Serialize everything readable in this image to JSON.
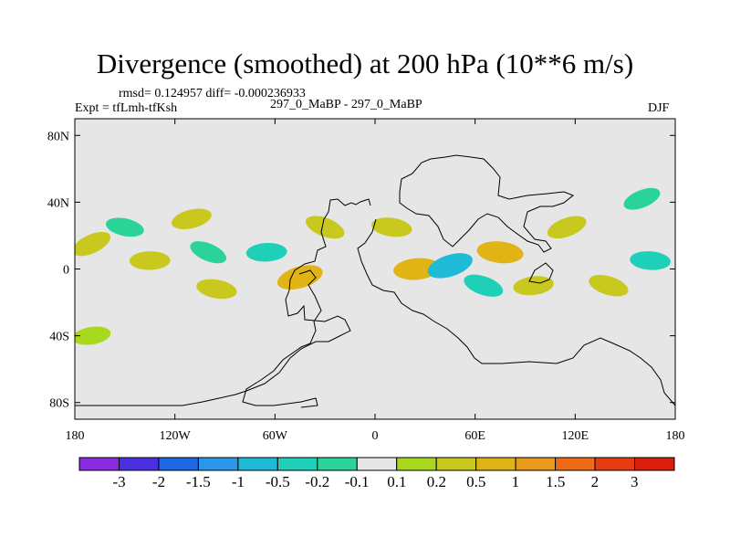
{
  "title": "Divergence (smoothed) at 200 hPa (10**6 m/s)",
  "stats_line": "rmsd= 0.124957 diff= -0.000236933",
  "left_label": "Expt = tfLmh-tfKsh",
  "center_label": "297_0_MaBP - 297_0_MaBP",
  "right_label": "DJF",
  "chart_data": {
    "type": "heatmap",
    "title": "Divergence (smoothed) at 200 hPa (10**6 m/s)",
    "variable": "divergence difference",
    "units": "10**6 m/s",
    "season": "DJF",
    "x_axis": {
      "range": [
        -180,
        180
      ],
      "ticks": [
        -180,
        -120,
        -60,
        0,
        60,
        120,
        180
      ],
      "tick_labels": [
        "180",
        "120W",
        "60W",
        "0",
        "60E",
        "120E",
        "180"
      ]
    },
    "y_axis": {
      "range": [
        -90,
        90
      ],
      "ticks": [
        80,
        40,
        0,
        -40,
        -80
      ],
      "tick_labels": [
        "80N",
        "40N",
        "0",
        "40S",
        "80S"
      ]
    },
    "background_color": "#e6e6e6",
    "colorbar": {
      "levels": [
        "-3",
        "-2",
        "-1.5",
        "-1",
        "-0.5",
        "-0.2",
        "-0.1",
        "0.1",
        "0.2",
        "0.5",
        "1",
        "1.5",
        "2",
        "3"
      ],
      "colors": [
        "#8a2be2",
        "#4b2fe0",
        "#1e6ae6",
        "#2a98ea",
        "#1fbad6",
        "#1fd0b8",
        "#2ad498",
        "#e6e6e6",
        "#a8d81e",
        "#c8c81e",
        "#e0b414",
        "#e89a18",
        "#ee6a14",
        "#e83a10",
        "#dc1e0e"
      ]
    },
    "features": [
      {
        "lon": -170,
        "lat": 15,
        "value": 0.3
      },
      {
        "lon": -150,
        "lat": 25,
        "value": -0.15
      },
      {
        "lon": -135,
        "lat": 5,
        "value": 0.3
      },
      {
        "lon": -110,
        "lat": 30,
        "value": 0.3
      },
      {
        "lon": -100,
        "lat": 10,
        "value": -0.15
      },
      {
        "lon": -95,
        "lat": -12,
        "value": 0.3
      },
      {
        "lon": -65,
        "lat": 10,
        "value": -0.3
      },
      {
        "lon": -45,
        "lat": -5,
        "value": 0.7
      },
      {
        "lon": -30,
        "lat": 25,
        "value": 0.3
      },
      {
        "lon": 10,
        "lat": 25,
        "value": 0.3
      },
      {
        "lon": 25,
        "lat": 0,
        "value": 0.7
      },
      {
        "lon": 45,
        "lat": 2,
        "value": -0.7
      },
      {
        "lon": 65,
        "lat": -10,
        "value": -0.3
      },
      {
        "lon": 75,
        "lat": 10,
        "value": 0.7
      },
      {
        "lon": 95,
        "lat": -10,
        "value": 0.3
      },
      {
        "lon": 115,
        "lat": 25,
        "value": 0.3
      },
      {
        "lon": 140,
        "lat": -10,
        "value": 0.3
      },
      {
        "lon": 165,
        "lat": 5,
        "value": -0.3
      },
      {
        "lon": -170,
        "lat": -40,
        "value": 0.15
      },
      {
        "lon": 160,
        "lat": 42,
        "value": -0.15
      }
    ]
  }
}
